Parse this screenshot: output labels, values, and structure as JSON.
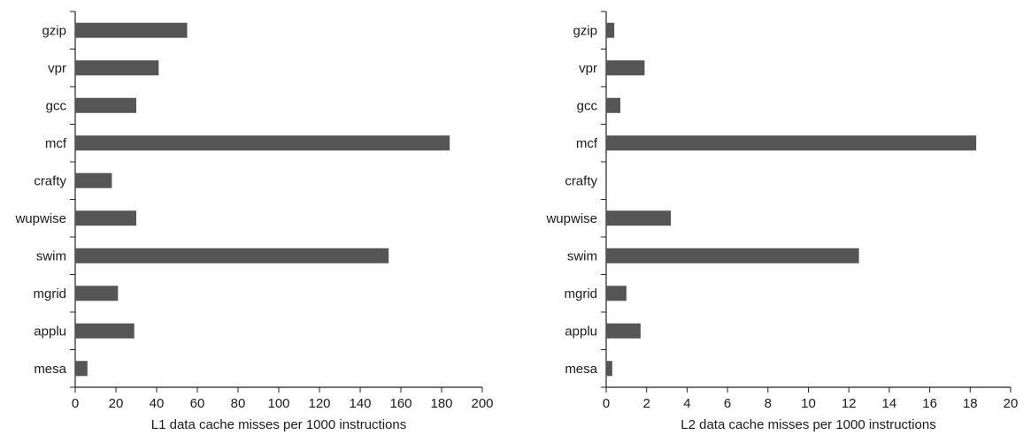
{
  "bar_color": "#555555",
  "axis_color": "#222222",
  "chart_data": [
    {
      "type": "bar",
      "orientation": "horizontal",
      "categories": [
        "gzip",
        "vpr",
        "gcc",
        "mcf",
        "crafty",
        "wupwise",
        "swim",
        "mgrid",
        "applu",
        "mesa"
      ],
      "values": [
        55,
        41,
        30,
        184,
        18,
        30,
        154,
        21,
        29,
        6
      ],
      "xlabel": "L1 data cache misses per 1000 instructions",
      "ylabel": "",
      "xlim": [
        0,
        200
      ],
      "xticks": [
        "0",
        "20",
        "40",
        "60",
        "80",
        "100",
        "120",
        "140",
        "160",
        "180",
        "200"
      ],
      "grid": false,
      "legend": false
    },
    {
      "type": "bar",
      "orientation": "horizontal",
      "categories": [
        "gzip",
        "vpr",
        "gcc",
        "mcf",
        "crafty",
        "wupwise",
        "swim",
        "mgrid",
        "applu",
        "mesa"
      ],
      "values": [
        0.4,
        1.9,
        0.7,
        18.3,
        0,
        3.2,
        12.5,
        1.0,
        1.7,
        0.3
      ],
      "xlabel": "L2 data cache misses per 1000 instructions",
      "ylabel": "",
      "xlim": [
        0,
        20
      ],
      "xticks": [
        "0",
        "2",
        "4",
        "6",
        "8",
        "10",
        "12",
        "14",
        "16",
        "18",
        "20"
      ],
      "grid": false,
      "legend": false
    }
  ]
}
